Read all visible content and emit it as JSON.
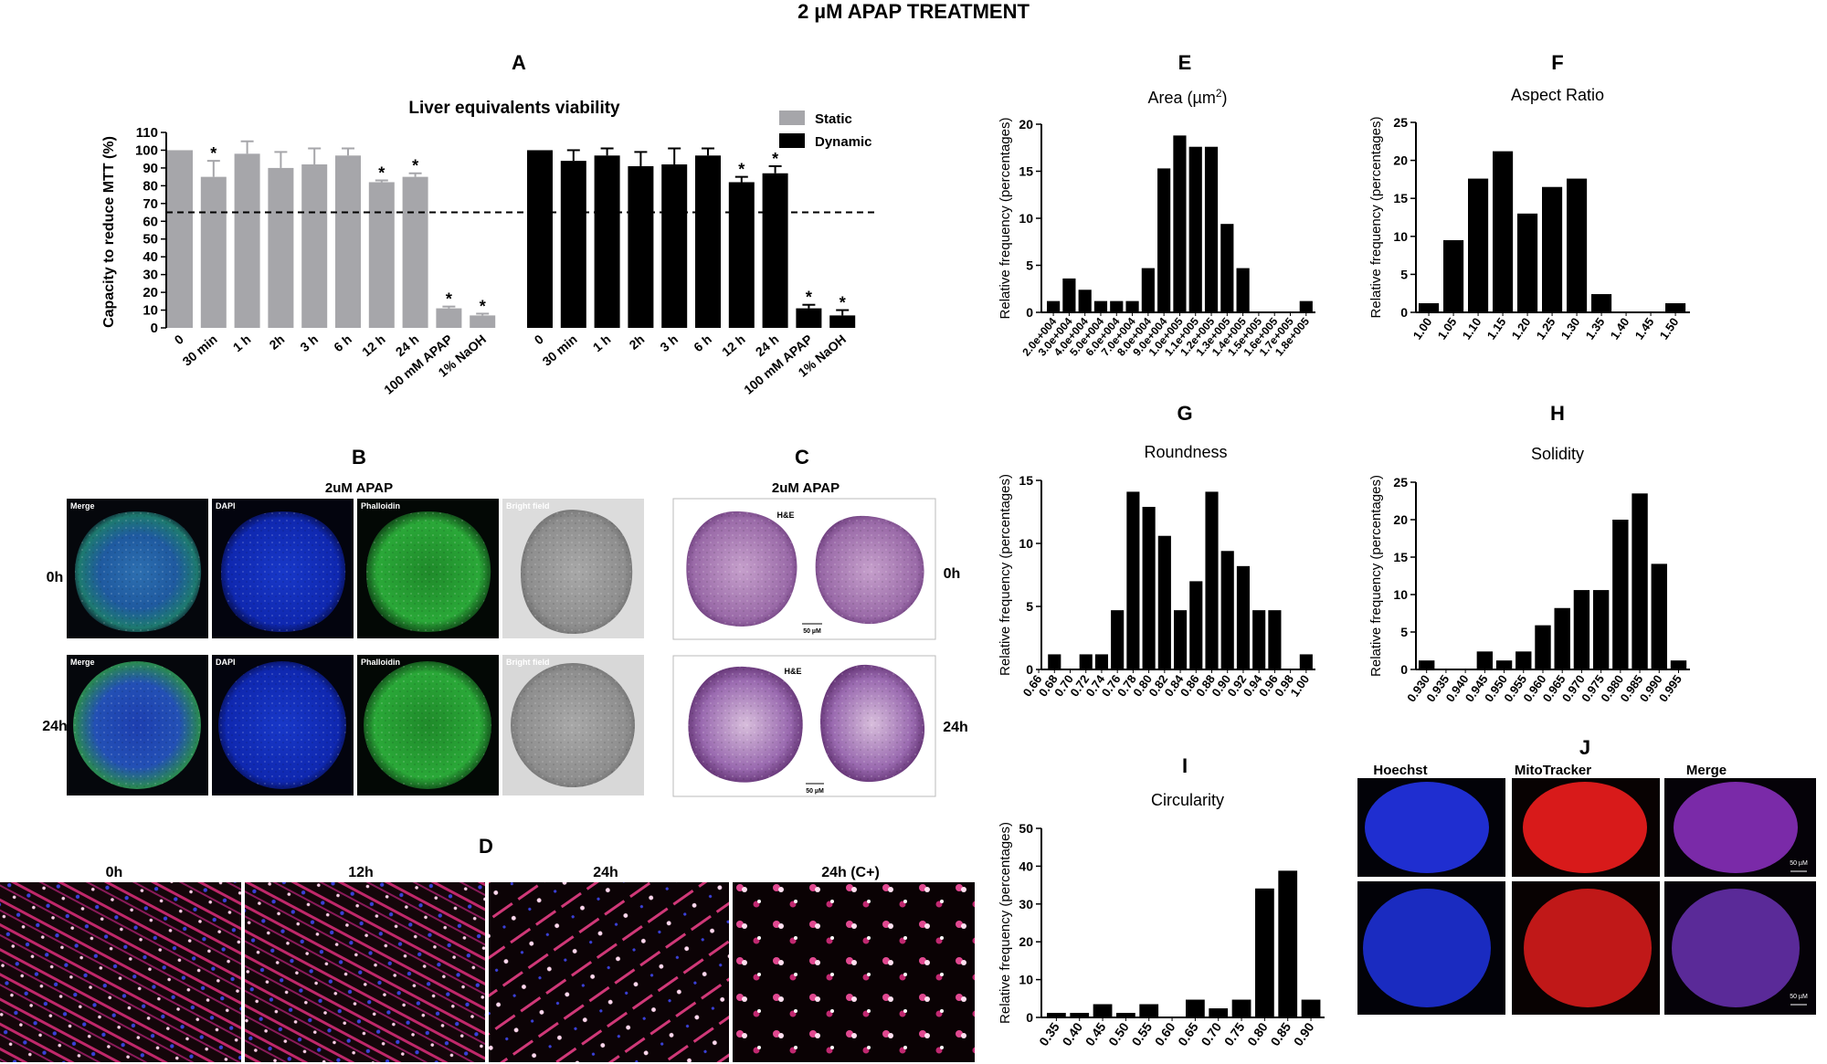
{
  "main_title": "2 µM APAP TREATMENT",
  "labels": {
    "A": "A",
    "B": "B",
    "C": "C",
    "D": "D",
    "E": "E",
    "F": "F",
    "G": "G",
    "H": "H",
    "I": "I",
    "J": "J"
  },
  "panelA": {
    "title": "Liver equivalents viability",
    "ylabel": "Capacity to reduce MTT (%)",
    "ylim": [
      0,
      110
    ],
    "yticks": [
      0,
      10,
      20,
      30,
      40,
      50,
      60,
      70,
      80,
      90,
      100,
      110
    ],
    "threshold": 65,
    "categories": [
      "0",
      "30 min",
      "1 h",
      "2h",
      "3 h",
      "6 h",
      "12 h",
      "24 h",
      "100 mM APAP",
      "1% NaOH"
    ],
    "legend": {
      "static": "Static",
      "dynamic": "Dynamic"
    },
    "colors": {
      "static": "#a6a6aa",
      "dynamic": "#000000"
    }
  },
  "panelB": {
    "title": "2uM APAP",
    "rows": [
      "0h",
      "24h"
    ],
    "channels": [
      "Merge",
      "DAPI",
      "Phalloidin",
      "Bright field"
    ]
  },
  "panelC": {
    "title": "2uM APAP",
    "rows": [
      "0h",
      "24h"
    ],
    "stain": "H&E",
    "scale": "50 µM"
  },
  "panelD": {
    "timepoints": [
      "0h",
      "12h",
      "24h",
      "24h (C+)"
    ]
  },
  "panelJ": {
    "channels": [
      "Hoechst",
      "MitoTracker",
      "Merge"
    ],
    "scale": "50 µM"
  },
  "chart_data": [
    {
      "type": "bar",
      "panel": "A",
      "title": "Liver equivalents viability",
      "ylabel": "Capacity to reduce MTT (%)",
      "ylim": [
        0,
        110
      ],
      "categories": [
        "0",
        "30 min",
        "1 h",
        "2h",
        "3 h",
        "6 h",
        "12 h",
        "24 h",
        "100 mM APAP",
        "1% NaOH"
      ],
      "reference_line": 65,
      "series": [
        {
          "name": "Static",
          "values": [
            100,
            85,
            98,
            90,
            92,
            97,
            82,
            85,
            11,
            7
          ],
          "errors": [
            0,
            9,
            7,
            9,
            9,
            4,
            1,
            2,
            1,
            1
          ],
          "significant": [
            false,
            true,
            false,
            false,
            false,
            false,
            true,
            true,
            true,
            true
          ]
        },
        {
          "name": "Dynamic",
          "values": [
            100,
            94,
            97,
            91,
            92,
            97,
            82,
            87,
            11,
            7
          ],
          "errors": [
            0,
            6,
            4,
            8,
            9,
            4,
            3,
            4,
            2,
            3
          ],
          "significant": [
            false,
            false,
            false,
            false,
            false,
            false,
            true,
            true,
            true,
            true
          ]
        }
      ]
    },
    {
      "type": "bar",
      "panel": "E",
      "title": "Area (µm²)",
      "ylabel": "Relative frequency (percentages)",
      "ylim": [
        0,
        20
      ],
      "yticks": [
        0,
        5,
        10,
        15,
        20
      ],
      "categories": [
        "2.0e+004",
        "3.0e+004",
        "4.0e+004",
        "5.0e+004",
        "6.0e+004",
        "7.0e+004",
        "8.0e+004",
        "9.0e+004",
        "1.0e+005",
        "1.1e+005",
        "1.2e+005",
        "1.3e+005",
        "1.4e+005",
        "1.5e+005",
        "1.6e+005",
        "1.7e+005",
        "1.8e+005"
      ],
      "values": [
        1.2,
        3.6,
        2.4,
        1.2,
        1.2,
        1.2,
        4.7,
        15.3,
        18.8,
        17.6,
        17.6,
        9.4,
        4.7,
        0,
        0,
        0,
        1.2
      ]
    },
    {
      "type": "bar",
      "panel": "F",
      "title": "Aspect Ratio",
      "ylabel": "Relative frequency (percentages)",
      "ylim": [
        0,
        25
      ],
      "yticks": [
        0,
        5,
        10,
        15,
        20,
        25
      ],
      "categories": [
        "1.00",
        "1.05",
        "1.10",
        "1.15",
        "1.20",
        "1.25",
        "1.30",
        "1.35",
        "1.40",
        "1.45",
        "1.50"
      ],
      "values": [
        1.2,
        9.5,
        17.6,
        21.2,
        13,
        16.5,
        17.6,
        2.4,
        0,
        0,
        1.2
      ]
    },
    {
      "type": "bar",
      "panel": "G",
      "title": "Roundness",
      "ylabel": "Relative frequency (percentages)",
      "ylim": [
        0,
        15
      ],
      "yticks": [
        0,
        5,
        10,
        15
      ],
      "categories": [
        "0.66",
        "0.68",
        "0.70",
        "0.72",
        "0.74",
        "0.76",
        "0.78",
        "0.80",
        "0.82",
        "0.84",
        "0.86",
        "0.88",
        "0.90",
        "0.92",
        "0.94",
        "0.96",
        "0.98",
        "1.00"
      ],
      "values": [
        0,
        1.2,
        0,
        1.2,
        1.2,
        4.7,
        14.1,
        12.9,
        10.6,
        4.7,
        7,
        14.1,
        9.4,
        8.2,
        4.7,
        4.7,
        0,
        1.2
      ]
    },
    {
      "type": "bar",
      "panel": "H",
      "title": "Solidity",
      "ylabel": "Relative frequency (percentages)",
      "ylim": [
        0,
        25
      ],
      "yticks": [
        0,
        5,
        10,
        15,
        20,
        25
      ],
      "categories": [
        "0.930",
        "0.935",
        "0.940",
        "0.945",
        "0.950",
        "0.955",
        "0.960",
        "0.965",
        "0.970",
        "0.975",
        "0.980",
        "0.985",
        "0.990",
        "0.995"
      ],
      "values": [
        1.2,
        0,
        0,
        2.4,
        1.2,
        2.4,
        5.9,
        8.2,
        10.6,
        10.6,
        20,
        23.5,
        14.1,
        1.2
      ]
    },
    {
      "type": "bar",
      "panel": "I",
      "title": "Circularity",
      "ylabel": "Relative frequency (percentages)",
      "ylim": [
        0,
        50
      ],
      "yticks": [
        0,
        10,
        20,
        30,
        40,
        50
      ],
      "categories": [
        "0.35",
        "0.40",
        "0.45",
        "0.50",
        "0.55",
        "0.60",
        "0.65",
        "0.70",
        "0.75",
        "0.80",
        "0.85",
        "0.90"
      ],
      "values": [
        1.2,
        1.2,
        3.5,
        1.2,
        3.5,
        0,
        4.7,
        2.4,
        4.7,
        34.1,
        38.8,
        4.7
      ]
    }
  ]
}
